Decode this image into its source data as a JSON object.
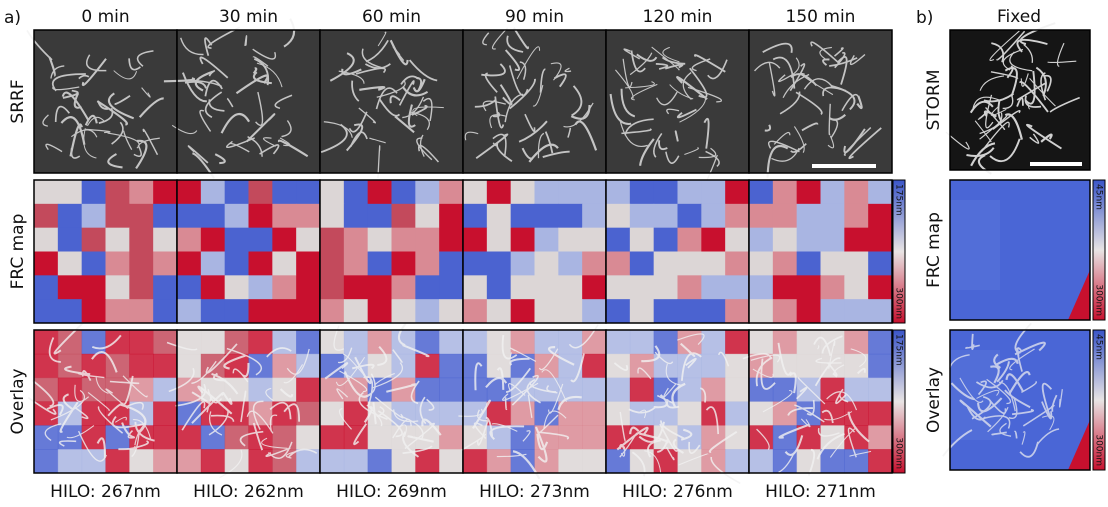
{
  "panel_a": {
    "label": "a)",
    "columns": [
      "0 min",
      "30 min",
      "60 min",
      "90 min",
      "120 min",
      "150 min"
    ],
    "rows": [
      "SRRF",
      "FRC map",
      "Overlay"
    ],
    "colorbar": [
      "175nm",
      "300nm"
    ],
    "footers": [
      "HILO: 267nm",
      "HILO: 262nm",
      "HILO: 269nm",
      "HILO: 273nm",
      "HILO: 276nm",
      "HILO: 271nm"
    ]
  },
  "panel_b": {
    "label": "b)",
    "column": "Fixed",
    "rows": [
      "STORM",
      "FRC map",
      "Overlay"
    ],
    "colorbar": [
      "45nm",
      "300nm"
    ]
  }
}
